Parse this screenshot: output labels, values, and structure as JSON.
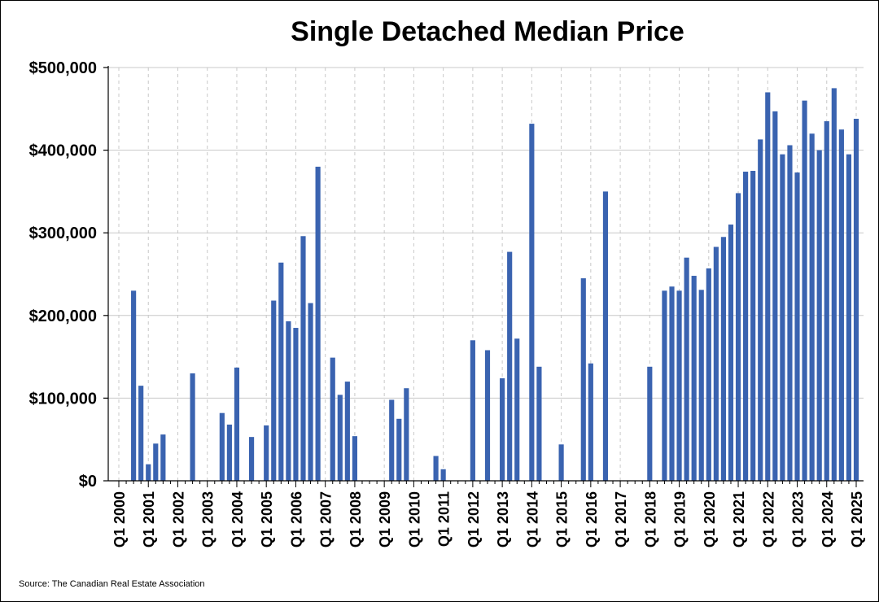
{
  "chart_data": {
    "type": "bar",
    "title": "Single Detached Median Price",
    "xlabel": "",
    "ylabel": "",
    "ylim": [
      0,
      500000
    ],
    "yticks": [
      "$0",
      "$100,000",
      "$200,000",
      "$300,000",
      "$400,000",
      "$500,000"
    ],
    "ytick_values": [
      0,
      100000,
      200000,
      300000,
      400000,
      500000
    ],
    "xticks": [
      "Q1 2000",
      "Q1 2001",
      "Q1 2002",
      "Q1 2003",
      "Q1 2004",
      "Q1 2005",
      "Q1 2006",
      "Q1 2007",
      "Q1 2008",
      "Q1 2009",
      "Q1 2010",
      "Q1 2011",
      "Q1 2012",
      "Q1 2013",
      "Q1 2014",
      "Q1 2015",
      "Q1 2016",
      "Q1 2017",
      "Q1 2018",
      "Q1 2019",
      "Q1 2020",
      "Q1 2021",
      "Q1 2022",
      "Q1 2023",
      "Q1 2024",
      "Q1 2025"
    ],
    "grid": true,
    "bar_color": "#3A63B0",
    "series": [
      {
        "values": [
          {
            "x": "Q3 2000",
            "y": 230000
          },
          {
            "x": "Q4 2000",
            "y": 115000
          },
          {
            "x": "Q1 2001",
            "y": 20000
          },
          {
            "x": "Q2 2001",
            "y": 45000
          },
          {
            "x": "Q3 2001",
            "y": 56000
          },
          {
            "x": "Q3 2002",
            "y": 130000
          },
          {
            "x": "Q3 2003",
            "y": 82000
          },
          {
            "x": "Q4 2003",
            "y": 68000
          },
          {
            "x": "Q1 2004",
            "y": 137000
          },
          {
            "x": "Q3 2004",
            "y": 53000
          },
          {
            "x": "Q1 2005",
            "y": 67000
          },
          {
            "x": "Q2 2005",
            "y": 218000
          },
          {
            "x": "Q3 2005",
            "y": 264000
          },
          {
            "x": "Q4 2005",
            "y": 193000
          },
          {
            "x": "Q1 2006",
            "y": 185000
          },
          {
            "x": "Q2 2006",
            "y": 296000
          },
          {
            "x": "Q3 2006",
            "y": 215000
          },
          {
            "x": "Q4 2006",
            "y": 380000
          },
          {
            "x": "Q2 2007",
            "y": 149000
          },
          {
            "x": "Q3 2007",
            "y": 104000
          },
          {
            "x": "Q4 2007",
            "y": 120000
          },
          {
            "x": "Q1 2008",
            "y": 54000
          },
          {
            "x": "Q2 2009",
            "y": 98000
          },
          {
            "x": "Q3 2009",
            "y": 75000
          },
          {
            "x": "Q4 2009",
            "y": 112000
          },
          {
            "x": "Q4 2010",
            "y": 30000
          },
          {
            "x": "Q1 2011",
            "y": 14000
          },
          {
            "x": "Q1 2012",
            "y": 170000
          },
          {
            "x": "Q3 2012",
            "y": 158000
          },
          {
            "x": "Q1 2013",
            "y": 124000
          },
          {
            "x": "Q2 2013",
            "y": 277000
          },
          {
            "x": "Q3 2013",
            "y": 172000
          },
          {
            "x": "Q1 2014",
            "y": 432000
          },
          {
            "x": "Q2 2014",
            "y": 138000
          },
          {
            "x": "Q1 2015",
            "y": 44000
          },
          {
            "x": "Q4 2015",
            "y": 245000
          },
          {
            "x": "Q1 2016",
            "y": 142000
          },
          {
            "x": "Q3 2016",
            "y": 350000
          },
          {
            "x": "Q1 2018",
            "y": 138000
          },
          {
            "x": "Q3 2018",
            "y": 230000
          },
          {
            "x": "Q4 2018",
            "y": 235000
          },
          {
            "x": "Q1 2019",
            "y": 230000
          },
          {
            "x": "Q2 2019",
            "y": 270000
          },
          {
            "x": "Q3 2019",
            "y": 248000
          },
          {
            "x": "Q4 2019",
            "y": 231000
          },
          {
            "x": "Q1 2020",
            "y": 257000
          },
          {
            "x": "Q2 2020",
            "y": 283000
          },
          {
            "x": "Q3 2020",
            "y": 295000
          },
          {
            "x": "Q4 2020",
            "y": 310000
          },
          {
            "x": "Q1 2021",
            "y": 348000
          },
          {
            "x": "Q2 2021",
            "y": 374000
          },
          {
            "x": "Q3 2021",
            "y": 375000
          },
          {
            "x": "Q4 2021",
            "y": 413000
          },
          {
            "x": "Q1 2022",
            "y": 470000
          },
          {
            "x": "Q2 2022",
            "y": 447000
          },
          {
            "x": "Q3 2022",
            "y": 395000
          },
          {
            "x": "Q4 2022",
            "y": 406000
          },
          {
            "x": "Q1 2023",
            "y": 373000
          },
          {
            "x": "Q2 2023",
            "y": 460000
          },
          {
            "x": "Q3 2023",
            "y": 420000
          },
          {
            "x": "Q4 2023",
            "y": 400000
          },
          {
            "x": "Q1 2024",
            "y": 435000
          },
          {
            "x": "Q2 2024",
            "y": 475000
          },
          {
            "x": "Q3 2024",
            "y": 425000
          },
          {
            "x": "Q4 2024",
            "y": 395000
          },
          {
            "x": "Q1 2025",
            "y": 438000
          }
        ]
      }
    ]
  },
  "source": "Source: The Canadian Real Estate Association"
}
